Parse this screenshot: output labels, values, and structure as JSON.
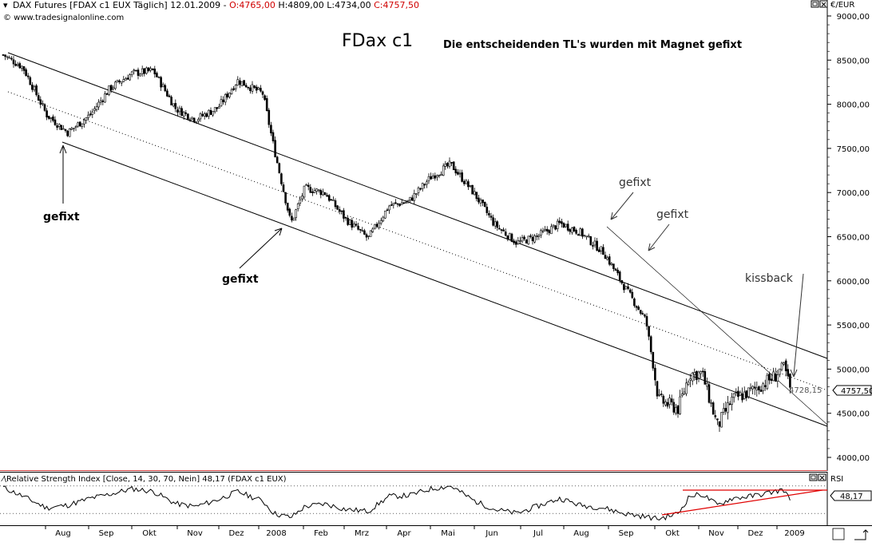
{
  "header": {
    "instrument": "DAX Futures [FDAX c1 EUX  Täglich] 12.01.2009 - ",
    "open": "O:4765,00",
    "high_low": " H:4809,00 L:4734,00 ",
    "close": "C:4757,50",
    "copyright": "© www.tradesignalonline.com",
    "currency": "€/EUR"
  },
  "annotations": {
    "title": "FDax c1",
    "subtitle": "Die entscheidenden TL's wurden mit Magnet gefixt",
    "gefixt_label": "gefixt",
    "kissback_label": "kissback"
  },
  "price_labels": {
    "channel_level": "4728,15",
    "last_price": "4757,50"
  },
  "rsi_panel": {
    "title": "Relative Strength Index [Close, 14, 30, 70, Nein] 48,17 (FDAX c1 EUX)",
    "axis_label": "RSI",
    "last_value": "48,17"
  },
  "colors": {
    "price": "#000000",
    "rsi_trendline": "#e00000",
    "open_value": "#d00000",
    "close_value": "#d00000"
  },
  "chart_data": {
    "type": "candlestick",
    "x_tick_labels": [
      "Aug",
      "Sep",
      "Okt",
      "Nov",
      "Dez",
      "2008",
      "Feb",
      "Mrz",
      "Apr",
      "Mai",
      "Jun",
      "Jul",
      "Aug",
      "Sep",
      "Okt",
      "Nov",
      "Dez",
      "2009"
    ],
    "y_tick_labels": [
      "9000,00",
      "8500,00",
      "8000,00",
      "7500,00",
      "7000,00",
      "6500,00",
      "6000,00",
      "5500,00",
      "5000,00",
      "4500,00",
      "4000,00"
    ],
    "ylim": [
      3950,
      9100
    ],
    "rsi_ylim": [
      15,
      85
    ],
    "rsi_reference_levels": [
      30,
      70
    ],
    "price_series": {
      "name": "FDAX c1",
      "x": [
        "2007-07-01",
        "2007-07-15",
        "2007-08-01",
        "2007-08-16",
        "2007-09-01",
        "2007-09-15",
        "2007-10-01",
        "2007-10-16",
        "2007-11-01",
        "2007-11-15",
        "2007-12-01",
        "2007-12-15",
        "2008-01-02",
        "2008-01-10",
        "2008-01-22",
        "2008-02-01",
        "2008-02-15",
        "2008-03-01",
        "2008-03-17",
        "2008-04-01",
        "2008-04-15",
        "2008-05-01",
        "2008-05-15",
        "2008-06-01",
        "2008-06-15",
        "2008-07-01",
        "2008-07-15",
        "2008-08-01",
        "2008-08-15",
        "2008-09-01",
        "2008-09-15",
        "2008-10-01",
        "2008-10-10",
        "2008-10-24",
        "2008-11-01",
        "2008-11-10",
        "2008-11-21",
        "2008-12-01",
        "2008-12-15",
        "2009-01-01",
        "2009-01-07",
        "2009-01-12"
      ],
      "values": [
        8560,
        8420,
        7880,
        7680,
        7880,
        8180,
        8350,
        8380,
        7950,
        7830,
        7960,
        8270,
        8120,
        7500,
        6650,
        7050,
        7000,
        6700,
        6480,
        6850,
        6900,
        7180,
        7320,
        6980,
        6640,
        6430,
        6500,
        6650,
        6550,
        6320,
        5950,
        5550,
        4650,
        4550,
        4950,
        4950,
        4350,
        4650,
        4750,
        4920,
        5050,
        4757.5
      ]
    },
    "rsi_series": {
      "name": "RSI",
      "x": [
        "2007-07-01",
        "2007-07-15",
        "2007-08-01",
        "2007-08-16",
        "2007-09-01",
        "2007-09-15",
        "2007-10-01",
        "2007-10-16",
        "2007-11-01",
        "2007-11-15",
        "2007-12-01",
        "2007-12-15",
        "2008-01-02",
        "2008-01-10",
        "2008-01-22",
        "2008-02-01",
        "2008-02-15",
        "2008-03-01",
        "2008-03-17",
        "2008-04-01",
        "2008-04-15",
        "2008-05-01",
        "2008-05-15",
        "2008-06-01",
        "2008-06-15",
        "2008-07-01",
        "2008-07-15",
        "2008-08-01",
        "2008-08-15",
        "2008-09-01",
        "2008-09-15",
        "2008-10-01",
        "2008-10-10",
        "2008-10-24",
        "2008-11-01",
        "2008-11-10",
        "2008-11-21",
        "2008-12-01",
        "2008-12-15",
        "2009-01-01",
        "2009-01-07",
        "2009-01-12"
      ],
      "values": [
        68,
        55,
        38,
        42,
        52,
        58,
        66,
        62,
        44,
        40,
        50,
        62,
        48,
        30,
        24,
        40,
        44,
        36,
        33,
        55,
        56,
        66,
        70,
        48,
        36,
        30,
        40,
        52,
        42,
        38,
        30,
        25,
        22,
        30,
        55,
        58,
        42,
        52,
        55,
        62,
        65,
        48.17
      ]
    }
  }
}
